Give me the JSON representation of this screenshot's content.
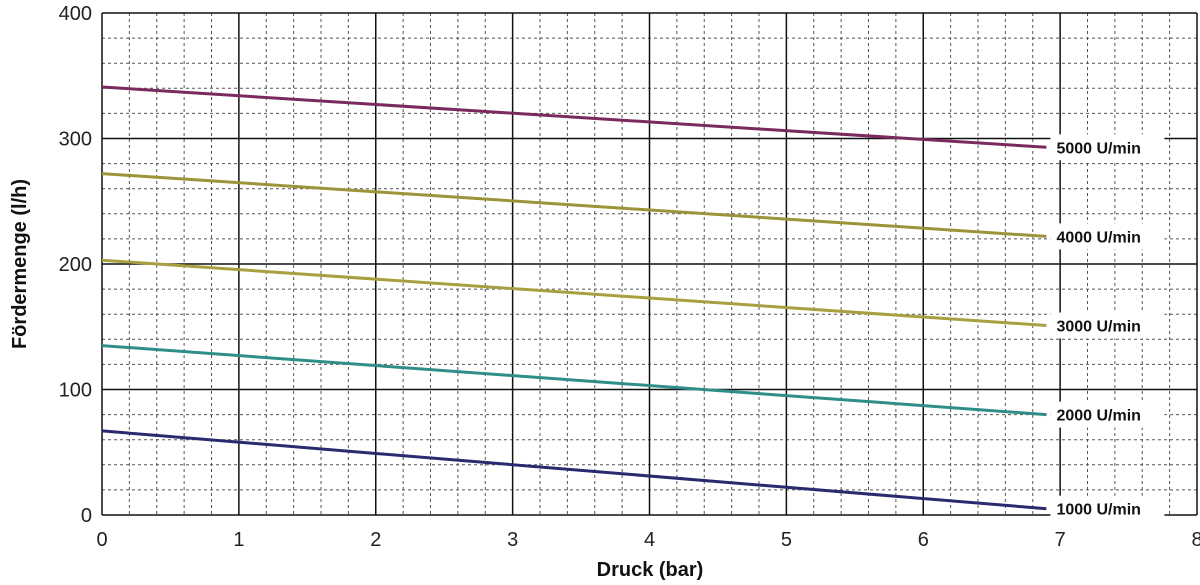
{
  "chart_data": {
    "type": "line",
    "title": "",
    "xlabel": "Druck (bar)",
    "ylabel": "Fördermenge (l/h)",
    "xlim": [
      0,
      8
    ],
    "ylim": [
      0,
      400
    ],
    "x_ticks": [
      "0",
      "1",
      "2",
      "3",
      "4",
      "5",
      "6",
      "7",
      "8"
    ],
    "y_ticks": [
      "0",
      "100",
      "200",
      "300",
      "400"
    ],
    "grid": true,
    "legend": "inline labels at right end of lines",
    "series": [
      {
        "name": "5000 U/min",
        "color": "#7a2a5e",
        "x": [
          0,
          6.9
        ],
        "y": [
          341,
          293
        ]
      },
      {
        "name": "4000 U/min",
        "color": "#9c9438",
        "x": [
          0,
          6.9
        ],
        "y": [
          272,
          222
        ]
      },
      {
        "name": "3000 U/min",
        "color": "#a8a040",
        "x": [
          0,
          6.9
        ],
        "y": [
          203,
          151
        ]
      },
      {
        "name": "2000 U/min",
        "color": "#2e8e8a",
        "x": [
          0,
          6.9
        ],
        "y": [
          135,
          80
        ]
      },
      {
        "name": "1000 U/min",
        "color": "#2a2a6e",
        "x": [
          0,
          6.9
        ],
        "y": [
          67,
          5
        ]
      }
    ]
  }
}
